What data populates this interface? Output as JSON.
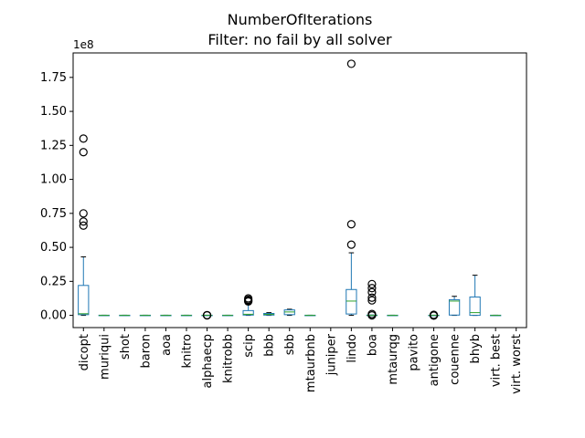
{
  "chart_data": {
    "type": "box",
    "title": "NumberOfIterations",
    "subtitle": "Filter: no fail by all solver",
    "xlabel": "",
    "ylabel": "",
    "y_multiplier_label": "1e8",
    "ylim": [
      -0.09,
      1.93
    ],
    "yticks": [
      0.0,
      0.25,
      0.5,
      0.75,
      1.0,
      1.25,
      1.5,
      1.75
    ],
    "ytick_labels": [
      "0.00",
      "0.25",
      "0.50",
      "0.75",
      "1.00",
      "1.25",
      "1.50",
      "1.75"
    ],
    "grid": false,
    "legend": "none",
    "colors": {
      "box": "#1f77b4",
      "median": "#2ca02c",
      "flier": "#000000"
    },
    "categories": [
      "dicopt",
      "muriqui",
      "shot",
      "baron",
      "aoa",
      "knitro",
      "alphaecp",
      "knitrobb",
      "scip",
      "bbb",
      "sbb",
      "mtaurbnb",
      "juniper",
      "lindo",
      "boa",
      "mtaurqg",
      "pavito",
      "antigone",
      "couenne",
      "bhyb",
      "virt. best",
      "virt. worst"
    ],
    "boxes": [
      {
        "q1": 0.005,
        "median": 0.012,
        "q3": 0.22,
        "whisker_low": 0.0,
        "whisker_high": 0.43,
        "fliers": [
          1.3,
          1.2,
          0.75,
          0.69,
          0.66
        ]
      },
      {
        "q1": 0.0,
        "median": 0.0,
        "q3": 0.001,
        "whisker_low": 0.0,
        "whisker_high": 0.001,
        "fliers": []
      },
      {
        "q1": 0.0,
        "median": 0.0,
        "q3": 0.001,
        "whisker_low": 0.0,
        "whisker_high": 0.001,
        "fliers": []
      },
      {
        "q1": 0.0,
        "median": 0.0,
        "q3": 0.001,
        "whisker_low": 0.0,
        "whisker_high": 0.001,
        "fliers": []
      },
      {
        "q1": 0.0,
        "median": 0.0,
        "q3": 0.001,
        "whisker_low": 0.0,
        "whisker_high": 0.001,
        "fliers": []
      },
      {
        "q1": 0.0,
        "median": 0.0,
        "q3": 0.001,
        "whisker_low": 0.0,
        "whisker_high": 0.001,
        "fliers": []
      },
      {
        "q1": 0.0,
        "median": 0.0,
        "q3": 0.001,
        "whisker_low": 0.0,
        "whisker_high": 0.001,
        "fliers": [
          0.002,
          0.0
        ]
      },
      {
        "q1": 0.0,
        "median": 0.0,
        "q3": 0.001,
        "whisker_low": 0.0,
        "whisker_high": 0.001,
        "fliers": []
      },
      {
        "q1": 0.002,
        "median": 0.008,
        "q3": 0.035,
        "whisker_low": 0.0,
        "whisker_high": 0.08,
        "fliers": [
          0.125,
          0.115,
          0.108,
          0.102
        ]
      },
      {
        "q1": 0.002,
        "median": 0.007,
        "q3": 0.014,
        "whisker_low": 0.0,
        "whisker_high": 0.02,
        "fliers": []
      },
      {
        "q1": 0.005,
        "median": 0.025,
        "q3": 0.04,
        "whisker_low": 0.0,
        "whisker_high": 0.045,
        "fliers": []
      },
      {
        "q1": 0.0,
        "median": 0.0,
        "q3": 0.001,
        "whisker_low": 0.0,
        "whisker_high": 0.001,
        "fliers": []
      },
      null,
      {
        "q1": 0.01,
        "median": 0.105,
        "q3": 0.19,
        "whisker_low": 0.0,
        "whisker_high": 0.46,
        "fliers": [
          1.85,
          0.67,
          0.52
        ]
      },
      {
        "q1": 0.0,
        "median": 0.0,
        "q3": 0.002,
        "whisker_low": 0.0,
        "whisker_high": 0.002,
        "fliers": [
          0.23,
          0.2,
          0.17,
          0.13,
          0.11,
          0.01,
          0.0
        ]
      },
      {
        "q1": 0.0,
        "median": 0.0,
        "q3": 0.001,
        "whisker_low": 0.0,
        "whisker_high": 0.001,
        "fliers": []
      },
      null,
      {
        "q1": 0.0,
        "median": 0.0,
        "q3": 0.001,
        "whisker_low": 0.0,
        "whisker_high": 0.001,
        "fliers": [
          0.004,
          0.001,
          -0.002
        ]
      },
      {
        "q1": 0.002,
        "median": 0.105,
        "q3": 0.115,
        "whisker_low": 0.0,
        "whisker_high": 0.14,
        "fliers": []
      },
      {
        "q1": 0.0,
        "median": 0.02,
        "q3": 0.135,
        "whisker_low": 0.0,
        "whisker_high": 0.295,
        "fliers": []
      },
      {
        "q1": 0.0,
        "median": 0.0,
        "q3": 0.001,
        "whisker_low": 0.0,
        "whisker_high": 0.001,
        "fliers": []
      },
      null
    ]
  }
}
